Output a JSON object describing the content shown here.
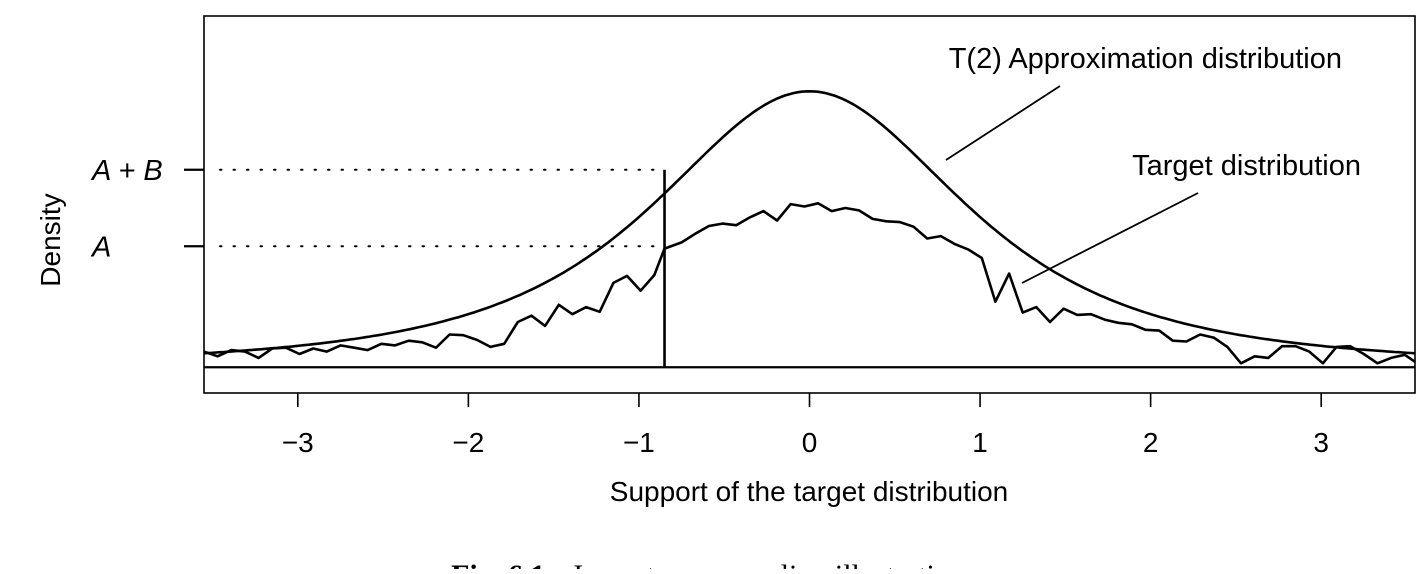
{
  "chart_data": {
    "type": "line",
    "title": "",
    "xlabel": "Support of the target distribution",
    "ylabel": "Density",
    "xlim": [
      -3.55,
      3.55
    ],
    "ylim": [
      -0.033,
      0.45
    ],
    "xticks": [
      "−3",
      "−2",
      "−1",
      "0",
      "1",
      "2",
      "3"
    ],
    "xtick_values": [
      -3,
      -2,
      -1,
      0,
      1,
      2,
      3
    ],
    "ytick_labels": {
      "A": "A",
      "A_plus_B": "A + B"
    },
    "ytick_values": {
      "A": 0.155,
      "A_plus_B": 0.253
    },
    "cutoff_x": -0.85,
    "grid": false,
    "series": [
      {
        "name": "T(2) Approximation distribution",
        "function": "t2_density",
        "scale": 1.0
      },
      {
        "name": "Target distribution",
        "x": [
          -3.55,
          -3.47,
          -3.39,
          -3.31,
          -3.23,
          -3.15,
          -3.07,
          -2.99,
          -2.91,
          -2.83,
          -2.75,
          -2.67,
          -2.59,
          -2.51,
          -2.43,
          -2.35,
          -2.27,
          -2.19,
          -2.11,
          -2.03,
          -1.95,
          -1.87,
          -1.79,
          -1.71,
          -1.63,
          -1.55,
          -1.47,
          -1.39,
          -1.31,
          -1.23,
          -1.15,
          -1.07,
          -0.99,
          -0.91,
          -0.85,
          -0.75,
          -0.67,
          -0.59,
          -0.51,
          -0.43,
          -0.35,
          -0.27,
          -0.19,
          -0.11,
          -0.03,
          0.05,
          0.13,
          0.21,
          0.29,
          0.37,
          0.45,
          0.53,
          0.61,
          0.69,
          0.77,
          0.85,
          0.93,
          1.01,
          1.09,
          1.17,
          1.25,
          1.33,
          1.41,
          1.49,
          1.57,
          1.65,
          1.73,
          1.81,
          1.89,
          1.97,
          2.05,
          2.13,
          2.21,
          2.29,
          2.37,
          2.45,
          2.53,
          2.61,
          2.69,
          2.77,
          2.85,
          2.93,
          3.01,
          3.09,
          3.17,
          3.25,
          3.33,
          3.41,
          3.49,
          3.55
        ],
        "values": [
          0.02,
          0.014,
          0.022,
          0.02,
          0.012,
          0.024,
          0.025,
          0.017,
          0.024,
          0.02,
          0.028,
          0.025,
          0.022,
          0.03,
          0.028,
          0.034,
          0.032,
          0.025,
          0.042,
          0.041,
          0.035,
          0.026,
          0.03,
          0.058,
          0.066,
          0.053,
          0.08,
          0.068,
          0.077,
          0.071,
          0.108,
          0.117,
          0.098,
          0.118,
          0.152,
          0.16,
          0.171,
          0.181,
          0.184,
          0.182,
          0.192,
          0.2,
          0.188,
          0.209,
          0.206,
          0.21,
          0.2,
          0.204,
          0.201,
          0.19,
          0.187,
          0.186,
          0.18,
          0.165,
          0.168,
          0.158,
          0.151,
          0.14,
          0.084,
          0.12,
          0.07,
          0.077,
          0.058,
          0.075,
          0.067,
          0.068,
          0.061,
          0.057,
          0.055,
          0.048,
          0.047,
          0.034,
          0.033,
          0.042,
          0.038,
          0.026,
          0.005,
          0.014,
          0.012,
          0.027,
          0.027,
          0.02,
          0.005,
          0.026,
          0.027,
          0.017,
          0.005,
          0.012,
          0.016,
          0.007
        ]
      }
    ]
  },
  "caption": {
    "label": "Fig. 6.1",
    "text": "Importance sampling illustration"
  }
}
